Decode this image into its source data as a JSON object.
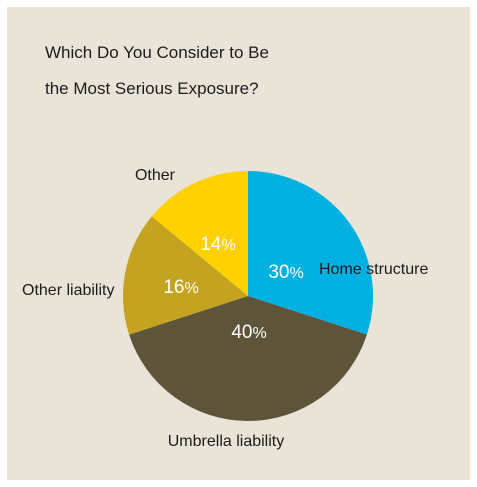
{
  "title_lines": [
    "Which Do You Consider to Be",
    "the Most Serious Exposure?"
  ],
  "chart_data": {
    "type": "pie",
    "title": "Which Do You Consider to Be the Most Serious Exposure?",
    "slices": [
      {
        "label": "Home structure",
        "value": 30,
        "display": "30",
        "color": "#00b0e0"
      },
      {
        "label": "Umbrella liability",
        "value": 40,
        "display": "40",
        "color": "#5e543a"
      },
      {
        "label": "Other liability",
        "value": 16,
        "display": "16",
        "color": "#c3a31f"
      },
      {
        "label": "Other",
        "value": 14,
        "display": "14",
        "color": "#ffd100"
      }
    ],
    "percent_sign": "%",
    "start_angle": "12 o'clock",
    "direction": "clockwise",
    "legend": "none"
  }
}
